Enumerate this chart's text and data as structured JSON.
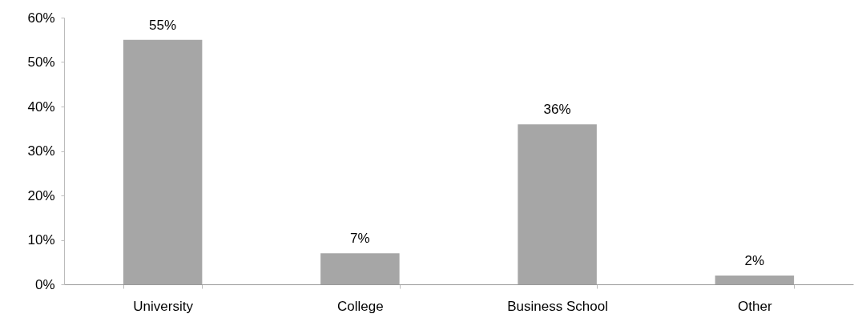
{
  "chart_data": {
    "type": "bar",
    "categories": [
      "University",
      "College",
      "Business School",
      "Other"
    ],
    "values": [
      55,
      7,
      36,
      2
    ],
    "color": "#a6a6a6",
    "value_labels": [
      "55%",
      "7%",
      "36%",
      "2%"
    ],
    "ylim": [
      0,
      60
    ],
    "yticks": [
      {
        "value": 0,
        "label": "0%"
      },
      {
        "value": 10,
        "label": "10%"
      },
      {
        "value": 20,
        "label": "20%"
      },
      {
        "value": 30,
        "label": "30%"
      },
      {
        "value": 40,
        "label": "40%"
      },
      {
        "value": 50,
        "label": "50%"
      },
      {
        "value": 60,
        "label": "60%"
      }
    ],
    "grid": false
  }
}
